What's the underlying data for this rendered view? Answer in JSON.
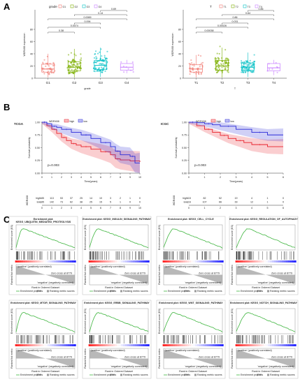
{
  "panels": {
    "a": "A",
    "b": "B",
    "c": "C"
  },
  "panelA": {
    "chart_data": [
      {
        "type": "box",
        "title": "",
        "legend_title": "grade",
        "legend": [
          "G1",
          "G2",
          "G3",
          "G4"
        ],
        "colors": [
          "#f0766e",
          "#7cae00",
          "#00bfc4",
          "#c77cff"
        ],
        "xlabel": "grade",
        "ylabel": "WDR408 expression",
        "categories": [
          "G1",
          "G2",
          "G3",
          "G4"
        ],
        "yticks": [
          "0",
          "20",
          "40",
          "60",
          "80"
        ],
        "ylim": [
          0,
          80
        ],
        "boxes": [
          {
            "q1": 10,
            "median": 15,
            "q3": 23,
            "whislo": 1,
            "whishi": 40
          },
          {
            "q1": 12,
            "median": 18,
            "q3": 27,
            "whislo": 1,
            "whishi": 48
          },
          {
            "q1": 14,
            "median": 21,
            "q3": 29,
            "whislo": 2,
            "whishi": 50
          },
          {
            "q1": 13,
            "median": 18,
            "q3": 24,
            "whislo": 8,
            "whishi": 30
          }
        ],
        "pvalues": [
          {
            "label": "0.38",
            "from": 0,
            "to": 1
          },
          {
            "label": "0.0074",
            "from": 0,
            "to": 2
          },
          {
            "label": "0.094",
            "from": 1,
            "to": 2
          },
          {
            "label": "0.0069",
            "from": 0,
            "to": 3
          },
          {
            "label": "0.14",
            "from": 1,
            "to": 3
          },
          {
            "label": "0.69",
            "from": 2,
            "to": 3
          }
        ]
      },
      {
        "type": "box",
        "title": "",
        "legend_title": "T",
        "legend": [
          "T1",
          "T2",
          "T3",
          "T4"
        ],
        "colors": [
          "#f0766e",
          "#7cae00",
          "#00bfc4",
          "#c77cff"
        ],
        "xlabel": "T",
        "ylabel": "WDR408 expression",
        "categories": [
          "T1",
          "T2",
          "T3",
          "T4"
        ],
        "yticks": [
          "0",
          "20",
          "40",
          "60",
          "80"
        ],
        "ylim": [
          0,
          80
        ],
        "boxes": [
          {
            "q1": 10,
            "median": 15,
            "q3": 22,
            "whislo": 1,
            "whishi": 38
          },
          {
            "q1": 13,
            "median": 20,
            "q3": 29,
            "whislo": 1,
            "whishi": 50
          },
          {
            "q1": 13,
            "median": 18,
            "q3": 25,
            "whislo": 2,
            "whishi": 42
          },
          {
            "q1": 12,
            "median": 17,
            "q3": 24,
            "whislo": 5,
            "whishi": 30
          }
        ],
        "pvalues": [
          {
            "label": "0.00038",
            "from": 0,
            "to": 1
          },
          {
            "label": "0.00026",
            "from": 0,
            "to": 2
          },
          {
            "label": "0.031",
            "from": 1,
            "to": 2
          },
          {
            "label": "0.86",
            "from": 0,
            "to": 3
          },
          {
            "label": "0.64",
            "from": 1,
            "to": 3
          },
          {
            "label": "0.86",
            "from": 2,
            "to": 3
          }
        ]
      }
    ]
  },
  "panelB": {
    "chart_data": [
      {
        "type": "line",
        "title": "TCGA",
        "legend_title": "WDR408",
        "legend": [
          "high",
          "low"
        ],
        "colors": [
          "#e8202a",
          "#2a2ad8"
        ],
        "xlabel": "Time(years)",
        "ylabel": "Survival probability",
        "pvalue": "p=0.003",
        "xticks": [
          "0",
          "1",
          "2",
          "3",
          "4",
          "5",
          "6",
          "7",
          "8",
          "9",
          "10"
        ],
        "yticks": [
          "0.00",
          "0.25",
          "0.50",
          "0.75",
          "1.00"
        ],
        "xlim": [
          0,
          10
        ],
        "ylim": [
          0,
          1
        ],
        "series": [
          {
            "name": "high",
            "x": [
              0,
              0.5,
              1,
              1.5,
              2,
              2.5,
              3,
              3.5,
              4,
              5,
              6,
              7,
              7.5,
              8,
              9,
              10
            ],
            "y": [
              1,
              0.93,
              0.86,
              0.78,
              0.7,
              0.64,
              0.58,
              0.55,
              0.52,
              0.47,
              0.42,
              0.36,
              0.28,
              0.26,
              0.24,
              0.22
            ]
          },
          {
            "name": "low",
            "x": [
              0,
              0.5,
              1,
              1.5,
              2,
              3,
              4,
              5,
              6,
              7,
              7.5,
              8,
              9,
              9.5,
              10
            ],
            "y": [
              1,
              0.97,
              0.92,
              0.9,
              0.86,
              0.8,
              0.75,
              0.68,
              0.6,
              0.52,
              0.43,
              0.36,
              0.33,
              0.2,
              0.2
            ]
          }
        ],
        "risk_table": {
          "label": "WDR408",
          "rows": [
            {
              "name": "high",
              "values": [
                "185",
                "113",
                "53",
                "37",
                "25",
                "14",
                "10",
                "3",
                "2",
                "1",
                "0"
              ]
            },
            {
              "name": "low",
              "values": [
                "185",
                "142",
                "73",
                "62",
                "38",
                "25",
                "15",
                "5",
                "1",
                "0",
                "0"
              ]
            }
          ]
        }
      },
      {
        "type": "line",
        "title": "ICGC",
        "legend_title": "WDR408",
        "legend": [
          "high",
          "low"
        ],
        "colors": [
          "#e8202a",
          "#2a2ad8"
        ],
        "xlabel": "Time(years)",
        "ylabel": "Survival probability",
        "pvalue": "p=0.003",
        "xticks": [
          "0",
          "1",
          "2",
          "3",
          "4",
          "5",
          "6"
        ],
        "yticks": [
          "0.00",
          "0.25",
          "0.50",
          "0.75",
          "1.00"
        ],
        "xlim": [
          0,
          6
        ],
        "ylim": [
          0,
          1
        ],
        "series": [
          {
            "name": "high",
            "x": [
              0,
              0.5,
              1,
              1.5,
              2,
              2.5,
              3,
              3.5,
              4,
              5,
              6
            ],
            "y": [
              1,
              0.93,
              0.86,
              0.8,
              0.74,
              0.68,
              0.64,
              0.6,
              0.56,
              0.52,
              0.52
            ]
          },
          {
            "name": "low",
            "x": [
              0,
              0.5,
              1,
              1.5,
              2,
              3,
              4,
              5,
              6
            ],
            "y": [
              1,
              0.99,
              0.97,
              0.95,
              0.92,
              0.86,
              0.8,
              0.75,
              0.75
            ]
          }
        ],
        "risk_table": {
          "label": "WDR408",
          "rows": [
            {
              "name": "high",
              "values": [
                "115",
                "82",
                "52",
                "19",
                "4",
                "1",
                "0"
              ]
            },
            {
              "name": "low",
              "values": [
                "116",
                "107",
                "66",
                "39",
                "12",
                "1",
                "0"
              ]
            }
          ]
        }
      }
    ]
  },
  "panelC": {
    "plots": [
      {
        "title": "Enrichment plot:\nKEGG_UBIQUITIN_MEDIATED_PROTEOLYSIS",
        "shape": "early"
      },
      {
        "title": "Enrichment plot: KEGG_INSULIN_SIGNALING_PATHWAY",
        "shape": "early"
      },
      {
        "title": "Enrichment plot: KEGG_CELL_CYCLE",
        "shape": "early"
      },
      {
        "title": "Enrichment plot: KEGG_REGULATION_OF_AUTOPHAGY",
        "shape": "early"
      },
      {
        "title": "Enrichment plot: KEGG_MTOR_SIGNALING_PATHWAY",
        "shape": "early"
      },
      {
        "title": "Enrichment plot: KEGG_ERBB_SIGNALING_PATHWAY",
        "shape": "early"
      },
      {
        "title": "Enrichment plot: KEGG_WNT_SIGNALING_PATHWAY",
        "shape": "early"
      },
      {
        "title": "Enrichment plot: KEGG_NOTCH_SIGNALING_PATHWAY",
        "shape": "early"
      }
    ],
    "labels": {
      "es_axis": "Enrichment score (ES)",
      "metric_axis": "Ranked list metric",
      "rank_axis": "Rank in Ordered Dataset",
      "legend_line": "Enrichment profile",
      "legend_hits": "Hits",
      "legend_metric": "Ranking metric scores",
      "pos": "'positive' (positively correlated)",
      "neg": "'negative' (negatively correlated)",
      "zero_cross": "Zero cross at 8779"
    },
    "colors": {
      "profile": "#3fb53f",
      "hits": "#000000",
      "pos": "#d9262a",
      "neg": "#2830b0",
      "metric": "#9a9a9a"
    }
  }
}
